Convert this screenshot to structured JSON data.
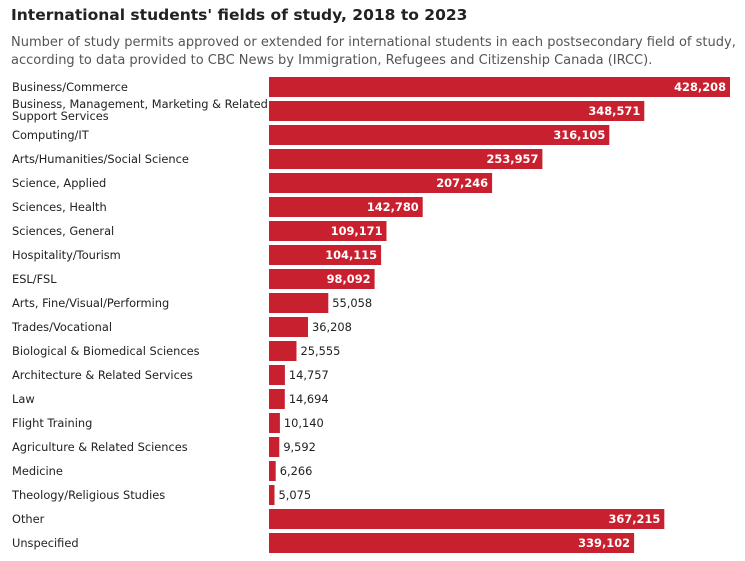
{
  "chart_data": {
    "type": "bar",
    "orientation": "horizontal",
    "title": "International students' fields of study, 2018 to 2023",
    "subtitle": "Number of study permits approved or extended for international students in each postsecondary field of study, according to data provided to CBC News by Immigration, Refugees and Citizenship Canada (IRCC).",
    "bar_color": "#c8202f",
    "categories": [
      "Business/Commerce",
      "Business, Management, Marketing & Related Support Services",
      "Computing/IT",
      "Arts/Humanities/Social Science",
      "Science, Applied",
      "Sciences, Health",
      "Sciences, General",
      "Hospitality/Tourism",
      "ESL/FSL",
      "Arts, Fine/Visual/Performing",
      "Trades/Vocational",
      "Biological & Biomedical Sciences",
      "Architecture & Related Services",
      "Law",
      "Flight Training",
      "Agriculture & Related Sciences",
      "Medicine",
      "Theology/Religious Studies",
      "Other",
      "Unspecified"
    ],
    "label_lines": [
      [
        "Business/Commerce"
      ],
      [
        "Business, Management, Marketing & Related",
        "Support Services"
      ],
      [
        "Computing/IT"
      ],
      [
        "Arts/Humanities/Social Science"
      ],
      [
        "Science, Applied"
      ],
      [
        "Sciences, Health"
      ],
      [
        "Sciences, General"
      ],
      [
        "Hospitality/Tourism"
      ],
      [
        "ESL/FSL"
      ],
      [
        "Arts, Fine/Visual/Performing"
      ],
      [
        "Trades/Vocational"
      ],
      [
        "Biological & Biomedical Sciences"
      ],
      [
        "Architecture & Related Services"
      ],
      [
        "Law"
      ],
      [
        "Flight Training"
      ],
      [
        "Agriculture & Related Sciences"
      ],
      [
        "Medicine"
      ],
      [
        "Theology/Religious Studies"
      ],
      [
        "Other"
      ],
      [
        "Unspecified"
      ]
    ],
    "values": [
      428208,
      348571,
      316105,
      253957,
      207246,
      142780,
      109171,
      104115,
      98092,
      55058,
      36208,
      25555,
      14757,
      14694,
      10140,
      9592,
      6266,
      5075,
      367215,
      339102
    ],
    "value_labels": [
      "428,208",
      "348,571",
      "316,105",
      "253,957",
      "207,246",
      "142,780",
      "109,171",
      "104,115",
      "98,092",
      "55,058",
      "36,208",
      "25,555",
      "14,757",
      "14,694",
      "10,140",
      "9,592",
      "6,266",
      "5,075",
      "367,215",
      "339,102"
    ],
    "xlim": [
      0,
      428208
    ],
    "xlabel": "",
    "ylabel": "",
    "grid": false
  }
}
